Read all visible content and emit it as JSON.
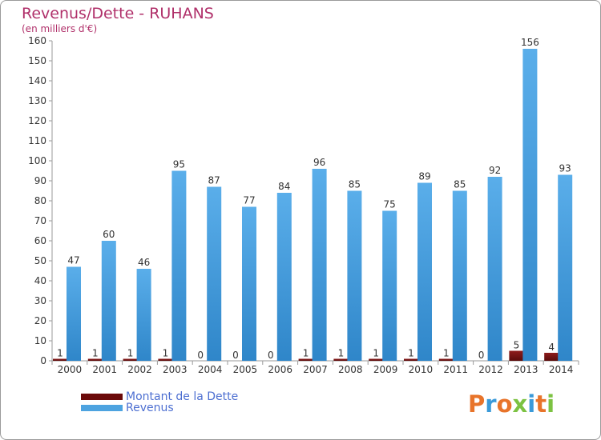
{
  "chart_data": {
    "type": "bar",
    "title": "Revenus/Dette - RUHANS",
    "subtitle": "(en milliers d'€)",
    "xlabel": "",
    "ylabel": "",
    "ylim": [
      0,
      160
    ],
    "yticks": [
      0,
      10,
      20,
      30,
      40,
      50,
      60,
      70,
      80,
      90,
      100,
      110,
      120,
      130,
      140,
      150,
      160
    ],
    "categories": [
      "2000",
      "2001",
      "2002",
      "2003",
      "2004",
      "2005",
      "2006",
      "2007",
      "2008",
      "2009",
      "2010",
      "2011",
      "2012",
      "2013",
      "2014"
    ],
    "series": [
      {
        "name": "Montant de la Dette",
        "color": "#7a1010",
        "values": [
          1,
          1,
          1,
          1,
          0,
          0,
          0,
          1,
          1,
          1,
          1,
          1,
          0,
          5,
          4
        ]
      },
      {
        "name": "Revenus",
        "color": "#4da3e0",
        "values": [
          47,
          60,
          46,
          95,
          87,
          77,
          84,
          96,
          85,
          75,
          89,
          85,
          92,
          156,
          93
        ]
      }
    ],
    "legend_position": "bottom-left",
    "grid": false
  },
  "logo": {
    "text": "Proxiti",
    "colors": [
      "#e8742a",
      "#3a9ad9",
      "#e8742a",
      "#7cc242",
      "#3a9ad9",
      "#e8742a",
      "#7cc242"
    ]
  }
}
